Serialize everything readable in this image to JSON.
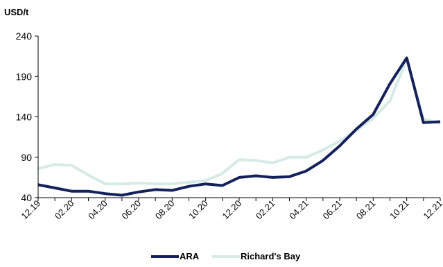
{
  "chart_data": {
    "type": "line",
    "unit_label": "USD/t",
    "x": [
      "12.19",
      "01.20",
      "02.20",
      "03.20",
      "04.20",
      "05.20",
      "06.20",
      "07.20",
      "08.20",
      "09.20",
      "10.20",
      "11.20",
      "12.20",
      "01.21",
      "02.21",
      "03.21",
      "04.21",
      "05.21",
      "06.21",
      "07.21",
      "08.21",
      "09.21",
      "10.21",
      "11.21",
      "12.21"
    ],
    "x_tick_labels": [
      "12.19",
      "02.20",
      "04.20",
      "06.20",
      "08.20",
      "10.20",
      "12.20",
      "02.21",
      "04.21",
      "06.21",
      "08.21",
      "10.21",
      "12.21"
    ],
    "yticks": [
      "40",
      "90",
      "140",
      "190",
      "240"
    ],
    "ylim": [
      40,
      240
    ],
    "grid": false,
    "legend_position": "bottom",
    "series": [
      {
        "name": "ARA",
        "color": "#14215a",
        "values": [
          56,
          52,
          48,
          48,
          45,
          43,
          47,
          50,
          49,
          54,
          57,
          55,
          65,
          67,
          65,
          66,
          73,
          86,
          104,
          125,
          143,
          181,
          213,
          133,
          134
        ]
      },
      {
        "name": "Richard's Bay",
        "color": "#d6ebe6",
        "values": [
          76,
          81,
          80,
          68,
          57,
          57,
          58,
          57,
          57,
          59,
          61,
          70,
          87,
          86,
          83,
          90,
          90,
          99,
          110,
          123,
          138,
          160,
          211,
          137,
          132
        ]
      }
    ]
  }
}
